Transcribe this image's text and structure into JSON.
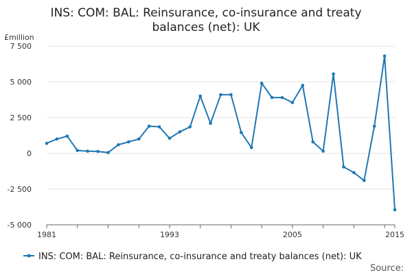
{
  "chart_data": {
    "type": "line",
    "title_lines": [
      "INS: COM: BAL: Reinsurance, co-insurance and treaty",
      "balances (net): UK"
    ],
    "ylabel": "£million",
    "xlabel": "",
    "ylim": [
      -5000,
      7500
    ],
    "xlim": [
      1981,
      2015
    ],
    "yticks": [
      {
        "value": 7500,
        "label": "7 500"
      },
      {
        "value": 5000,
        "label": "5 000"
      },
      {
        "value": 2500,
        "label": "2 500"
      },
      {
        "value": 0,
        "label": "0"
      },
      {
        "value": -2500,
        "label": "-2 500"
      },
      {
        "value": -5000,
        "label": "-5 000"
      }
    ],
    "xticks_labeled": [
      {
        "value": 1981,
        "label": "1981"
      },
      {
        "value": 1993,
        "label": "1993"
      },
      {
        "value": 2005,
        "label": "2005"
      },
      {
        "value": 2015,
        "label": "2015"
      }
    ],
    "grid": "horizontal",
    "legend_position": "bottom",
    "series": [
      {
        "name": "INS: COM: BAL: Reinsurance, co-insurance and treaty balances (net): UK",
        "color": "#1f77b4",
        "x": [
          1981,
          1982,
          1983,
          1984,
          1985,
          1986,
          1987,
          1988,
          1989,
          1990,
          1991,
          1992,
          1993,
          1994,
          1995,
          1996,
          1997,
          1998,
          1999,
          2000,
          2001,
          2002,
          2003,
          2004,
          2005,
          2006,
          2007,
          2008,
          2009,
          2010,
          2011,
          2012,
          2013,
          2014,
          2015
        ],
        "values": [
          700,
          1000,
          1200,
          200,
          150,
          130,
          50,
          600,
          800,
          1000,
          1900,
          1850,
          1050,
          1500,
          1850,
          4000,
          2100,
          4100,
          4100,
          1450,
          400,
          4900,
          3900,
          3900,
          3550,
          4750,
          800,
          150,
          5550,
          -950,
          -1350,
          -1900,
          1900,
          6800,
          -3950
        ]
      }
    ],
    "source_label": "Source:"
  }
}
